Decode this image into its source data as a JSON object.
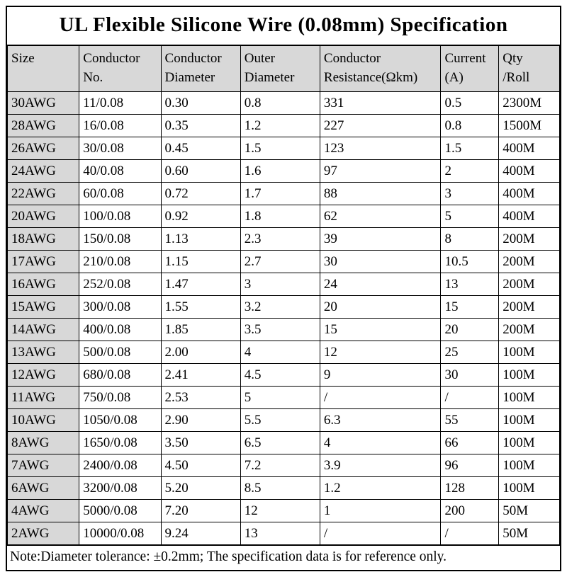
{
  "title": "UL Flexible Silicone Wire (0.08mm) Specification",
  "note": "Note:Diameter tolerance: ±0.2mm; The specification data is for reference only.",
  "colors": {
    "header_bg": "#d8d8d8",
    "size_column_bg": "#d8d8d8",
    "border": "#000000",
    "background": "#ffffff",
    "text": "#000000"
  },
  "chart_data": {
    "type": "table",
    "title": "UL Flexible Silicone Wire (0.08mm) Specification",
    "columns": [
      {
        "id": "size",
        "line1": "Size",
        "line2": ""
      },
      {
        "id": "conductor-no",
        "line1": "Conductor",
        "line2": "No."
      },
      {
        "id": "conductor-diameter",
        "line1": "Conductor",
        "line2": "Diameter"
      },
      {
        "id": "outer-diameter",
        "line1": "Outer",
        "line2": "Diameter"
      },
      {
        "id": "conductor-resistance",
        "line1": "Conductor",
        "line2": "Resistance(Ωkm)"
      },
      {
        "id": "current",
        "line1": "Current",
        "line2": "(A)"
      },
      {
        "id": "qty-roll",
        "line1": "Qty",
        "line2": "/Roll"
      }
    ],
    "rows": [
      [
        "30AWG",
        "11/0.08",
        "0.30",
        "0.8",
        "331",
        "0.5",
        "2300M"
      ],
      [
        "28AWG",
        "16/0.08",
        "0.35",
        "1.2",
        "227",
        "0.8",
        "1500M"
      ],
      [
        "26AWG",
        "30/0.08",
        "0.45",
        "1.5",
        "123",
        "1.5",
        "400M"
      ],
      [
        "24AWG",
        "40/0.08",
        "0.60",
        "1.6",
        "97",
        "2",
        "400M"
      ],
      [
        "22AWG",
        "60/0.08",
        "0.72",
        "1.7",
        "88",
        "3",
        "400M"
      ],
      [
        "20AWG",
        "100/0.08",
        "0.92",
        "1.8",
        "62",
        "5",
        "400M"
      ],
      [
        "18AWG",
        "150/0.08",
        "1.13",
        "2.3",
        "39",
        "8",
        "200M"
      ],
      [
        "17AWG",
        "210/0.08",
        "1.15",
        "2.7",
        "30",
        "10.5",
        "200M"
      ],
      [
        "16AWG",
        "252/0.08",
        "1.47",
        "3",
        "24",
        "13",
        "200M"
      ],
      [
        "15AWG",
        "300/0.08",
        "1.55",
        "3.2",
        "20",
        "15",
        "200M"
      ],
      [
        "14AWG",
        "400/0.08",
        "1.85",
        "3.5",
        "15",
        "20",
        "200M"
      ],
      [
        "13AWG",
        "500/0.08",
        "2.00",
        "4",
        "12",
        "25",
        "100M"
      ],
      [
        "12AWG",
        "680/0.08",
        "2.41",
        "4.5",
        "9",
        "30",
        "100M"
      ],
      [
        "11AWG",
        "750/0.08",
        "2.53",
        "5",
        "/",
        "/",
        "100M"
      ],
      [
        "10AWG",
        "1050/0.08",
        "2.90",
        "5.5",
        "6.3",
        "55",
        "100M"
      ],
      [
        "8AWG",
        "1650/0.08",
        "3.50",
        "6.5",
        "4",
        "66",
        "100M"
      ],
      [
        "7AWG",
        "2400/0.08",
        "4.50",
        "7.2",
        "3.9",
        "96",
        "100M"
      ],
      [
        "6AWG",
        "3200/0.08",
        "5.20",
        "8.5",
        "1.2",
        "128",
        "100M"
      ],
      [
        "4AWG",
        "5000/0.08",
        "7.20",
        "12",
        "1",
        "200",
        "50M"
      ],
      [
        "2AWG",
        "10000/0.08",
        "9.24",
        "13",
        "/",
        "/",
        "50M"
      ]
    ]
  }
}
